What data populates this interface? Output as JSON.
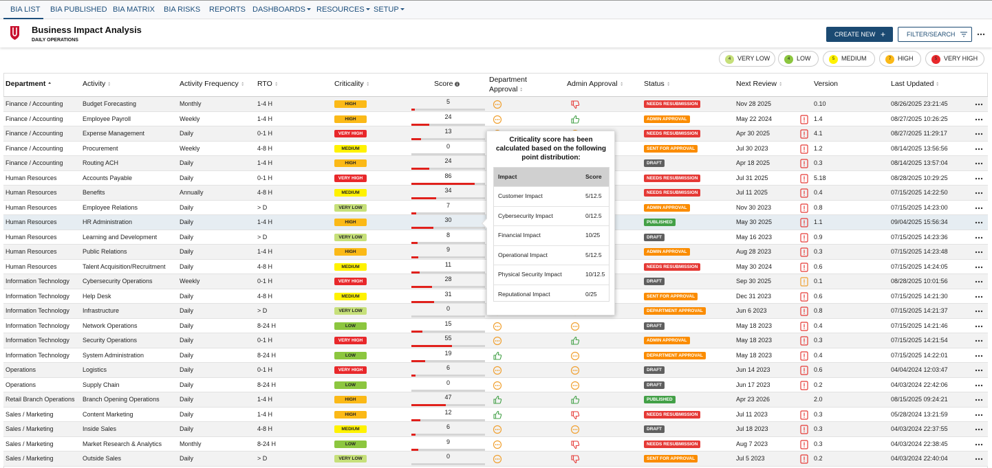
{
  "nav": {
    "tabs": [
      "BIA LIST",
      "BIA PUBLISHED",
      "BIA MATRIX",
      "BIA RISKS",
      "REPORTS",
      "DASHBOARDS",
      "RESOURCES",
      "SETUP"
    ]
  },
  "header": {
    "title": "Business Impact Analysis",
    "subtitle": "DAILY OPERATIONS",
    "create_button": "CREATE NEW",
    "filter_button": "FILTER/SEARCH"
  },
  "legend": [
    {
      "count": 4,
      "label": "VERY LOW",
      "color": "#c6e07a"
    },
    {
      "count": 4,
      "label": "LOW",
      "color": "#8cc63f"
    },
    {
      "count": 5,
      "label": "MEDIUM",
      "color": "#fff200"
    },
    {
      "count": 7,
      "label": "HIGH",
      "color": "#fbb917"
    },
    {
      "count": 5,
      "label": "VERY HIGH",
      "color": "#e8282b"
    }
  ],
  "table": {
    "columns": [
      "Department",
      "Activity",
      "Activity Frequency",
      "RTO",
      "Criticality",
      "Score",
      "Department Approval",
      "Admin Approval",
      "Status",
      "Next Review",
      "Version",
      "Last Updated"
    ],
    "score_lim": [
      0,
      100
    ],
    "rows": [
      {
        "department": "Finance / Accounting",
        "activity": "Budget Forecasting",
        "frequency": "Monthly",
        "rto": "1-4 H",
        "criticality": "HIGH",
        "score": 5,
        "status": {
          "label": "NEEDS RESUBMISSION",
          "color": "#e53935"
        },
        "next_review": "Nov 28 2025",
        "version": "0.10",
        "last_updated": "08/26/2025 23:21:45"
      },
      {
        "department": "Finance / Accounting",
        "activity": "Employee Payroll",
        "frequency": "Weekly",
        "rto": "1-4 H",
        "criticality": "HIGH",
        "score": 24,
        "status": {
          "label": "ADMIN APPROVAL",
          "color": "#fb8c00"
        },
        "next_review": "May 22 2024",
        "version": "1.4",
        "last_updated": "08/27/2025 10:26:25"
      },
      {
        "department": "Finance / Accounting",
        "activity": "Expense Management",
        "frequency": "Daily",
        "rto": "0-1 H",
        "criticality": "VERY HIGH",
        "score": 13,
        "status": {
          "label": "NEEDS RESUBMISSION",
          "color": "#e53935"
        },
        "next_review": "Apr 30 2025",
        "version": "4.1",
        "last_updated": "08/27/2025 11:29:17"
      },
      {
        "department": "Finance / Accounting",
        "activity": "Procurement",
        "frequency": "Weekly",
        "rto": "4-8 H",
        "criticality": "MEDIUM",
        "score": 0,
        "status": {
          "label": "SENT FOR APPROVAL",
          "color": "#fb8c00"
        },
        "next_review": "Jul 30 2023",
        "version": "1.2",
        "last_updated": "08/14/2025 13:56:56"
      },
      {
        "department": "Finance / Accounting",
        "activity": "Routing ACH",
        "frequency": "Daily",
        "rto": "1-4 H",
        "criticality": "HIGH",
        "score": 24,
        "status": {
          "label": "DRAFT",
          "color": "#5f5f5f"
        },
        "next_review": "Apr 18 2025",
        "version": "0.3",
        "last_updated": "08/14/2025 13:57:04"
      },
      {
        "department": "Human Resources",
        "activity": "Accounts Payable",
        "frequency": "Daily",
        "rto": "0-1 H",
        "criticality": "VERY HIGH",
        "score": 86,
        "status": {
          "label": "NEEDS RESUBMISSION",
          "color": "#e53935"
        },
        "next_review": "Jul 31 2025",
        "version": "5.18",
        "last_updated": "08/28/2025 10:29:25"
      },
      {
        "department": "Human Resources",
        "activity": "Benefits",
        "frequency": "Annually",
        "rto": "4-8 H",
        "criticality": "MEDIUM",
        "score": 34,
        "status": {
          "label": "NEEDS RESUBMISSION",
          "color": "#e53935"
        },
        "next_review": "Jul 11 2025",
        "version": "0.4",
        "last_updated": "07/15/2025 14:22:50"
      },
      {
        "department": "Human Resources",
        "activity": "Employee Relations",
        "frequency": "Daily",
        "rto": "> D",
        "criticality": "VERY LOW",
        "score": 7,
        "status": {
          "label": "ADMIN APPROVAL",
          "color": "#fb8c00"
        },
        "next_review": "Nov 30 2023",
        "version": "0.8",
        "last_updated": "07/15/2025 14:23:00"
      },
      {
        "department": "Human Resources",
        "activity": "HR Administration",
        "frequency": "Daily",
        "rto": "1-4 H",
        "criticality": "HIGH",
        "score": 30,
        "status": {
          "label": "PUBLISHED",
          "color": "#43a047"
        },
        "next_review": "May 30 2025",
        "version": "1.1",
        "last_updated": "09/04/2025 15:56:34"
      },
      {
        "department": "Human Resources",
        "activity": "Learning and Development",
        "frequency": "Daily",
        "rto": "> D",
        "criticality": "VERY LOW",
        "score": 8,
        "status": {
          "label": "DRAFT",
          "color": "#5f5f5f"
        },
        "next_review": "May 16 2023",
        "version": "0.9",
        "last_updated": "07/15/2025 14:23:36"
      },
      {
        "department": "Human Resources",
        "activity": "Public Relations",
        "frequency": "Daily",
        "rto": "1-4 H",
        "criticality": "HIGH",
        "score": 9,
        "status": {
          "label": "ADMIN APPROVAL",
          "color": "#fb8c00"
        },
        "next_review": "Aug 28 2023",
        "version": "0.3",
        "last_updated": "07/15/2025 14:23:48"
      },
      {
        "department": "Human Resources",
        "activity": "Talent Acquisition/Recruitment",
        "frequency": "Daily",
        "rto": "4-8 H",
        "criticality": "MEDIUM",
        "score": 11,
        "status": {
          "label": "NEEDS RESUBMISSION",
          "color": "#e53935"
        },
        "next_review": "May 30 2024",
        "version": "0.6",
        "last_updated": "07/15/2025 14:24:05"
      },
      {
        "department": "Information Technology",
        "activity": "Cybersecurity Operations",
        "frequency": "Weekly",
        "rto": "0-1 H",
        "criticality": "VERY HIGH",
        "score": 28,
        "status": {
          "label": "DRAFT",
          "color": "#5f5f5f"
        },
        "next_review": "Sep 30 2025",
        "version": "0.1",
        "last_updated": "08/28/2025 10:01:56"
      },
      {
        "department": "Information Technology",
        "activity": "Help Desk",
        "frequency": "Daily",
        "rto": "4-8 H",
        "criticality": "MEDIUM",
        "score": 31,
        "status": {
          "label": "SENT FOR APPROVAL",
          "color": "#fb8c00"
        },
        "next_review": "Dec 31 2023",
        "version": "0.6",
        "last_updated": "07/15/2025 14:21:30"
      },
      {
        "department": "Information Technology",
        "activity": "Infrastructure",
        "frequency": "Daily",
        "rto": "> D",
        "criticality": "VERY LOW",
        "score": 0,
        "status": {
          "label": "DEPARTMENT APPROVAL",
          "color": "#fb8c00"
        },
        "next_review": "Jun 6 2023",
        "version": "0.8",
        "last_updated": "07/15/2025 14:21:37"
      },
      {
        "department": "Information Technology",
        "activity": "Network Operations",
        "frequency": "Daily",
        "rto": "8-24 H",
        "criticality": "LOW",
        "score": 15,
        "status": {
          "label": "DRAFT",
          "color": "#5f5f5f"
        },
        "next_review": "May 18 2023",
        "version": "0.4",
        "last_updated": "07/15/2025 14:21:46"
      },
      {
        "department": "Information Technology",
        "activity": "Security Operations",
        "frequency": "Daily",
        "rto": "0-1 H",
        "criticality": "VERY HIGH",
        "score": 55,
        "status": {
          "label": "ADMIN APPROVAL",
          "color": "#fb8c00"
        },
        "next_review": "May 18 2023",
        "version": "0.3",
        "last_updated": "07/15/2025 14:21:54"
      },
      {
        "department": "Information Technology",
        "activity": "System Administration",
        "frequency": "Daily",
        "rto": "8-24 H",
        "criticality": "LOW",
        "score": 19,
        "status": {
          "label": "DEPARTMENT APPROVAL",
          "color": "#fb8c00"
        },
        "next_review": "May 18 2023",
        "version": "0.4",
        "last_updated": "07/15/2025 14:22:01"
      },
      {
        "department": "Operations",
        "activity": "Logistics",
        "frequency": "Daily",
        "rto": "0-1 H",
        "criticality": "VERY HIGH",
        "score": 6,
        "status": {
          "label": "DRAFT",
          "color": "#5f5f5f"
        },
        "next_review": "Jun 14 2023",
        "version": "0.6",
        "last_updated": "04/04/2024 12:03:47"
      },
      {
        "department": "Operations",
        "activity": "Supply Chain",
        "frequency": "Daily",
        "rto": "8-24 H",
        "criticality": "LOW",
        "score": 0,
        "status": {
          "label": "DRAFT",
          "color": "#5f5f5f"
        },
        "next_review": "Jun 17 2023",
        "version": "0.2",
        "last_updated": "04/03/2024 22:42:06"
      },
      {
        "department": "Retail Branch Operations",
        "activity": "Branch Opening Operations",
        "frequency": "Daily",
        "rto": "1-4 H",
        "criticality": "HIGH",
        "score": 47,
        "status": {
          "label": "PUBLISHED",
          "color": "#43a047"
        },
        "next_review": "Apr 23 2026",
        "version": "2.0",
        "last_updated": "08/15/2025 09:24:21"
      },
      {
        "department": "Sales / Marketing",
        "activity": "Content Marketing",
        "frequency": "Daily",
        "rto": "1-4 H",
        "criticality": "HIGH",
        "score": 12,
        "status": {
          "label": "NEEDS RESUBMISSION",
          "color": "#e53935"
        },
        "next_review": "Jul 11 2023",
        "version": "0.3",
        "last_updated": "05/28/2024 13:21:59"
      },
      {
        "department": "Sales / Marketing",
        "activity": "Inside Sales",
        "frequency": "Daily",
        "rto": "4-8 H",
        "criticality": "MEDIUM",
        "score": 6,
        "status": {
          "label": "DRAFT",
          "color": "#5f5f5f"
        },
        "next_review": "Jul 18 2023",
        "version": "0.3",
        "last_updated": "04/03/2024 22:37:55"
      },
      {
        "department": "Sales / Marketing",
        "activity": "Market Research & Analytics",
        "frequency": "Monthly",
        "rto": "8-24 H",
        "criticality": "LOW",
        "score": 9,
        "status": {
          "label": "NEEDS RESUBMISSION",
          "color": "#e53935"
        },
        "next_review": "Aug 7 2023",
        "version": "0.3",
        "last_updated": "04/03/2024 22:38:45"
      },
      {
        "department": "Sales / Marketing",
        "activity": "Outside Sales",
        "frequency": "Daily",
        "rto": "> D",
        "criticality": "VERY LOW",
        "score": 0,
        "status": {
          "label": "SENT FOR APPROVAL",
          "color": "#fb8c00"
        },
        "next_review": "Jul 5 2023",
        "version": "0.2",
        "last_updated": "04/03/2024 22:40:04"
      }
    ]
  },
  "tooltip": {
    "title": "Criticality score has been calculated based on the following point distribution:",
    "columns": [
      "Impact",
      "Score"
    ],
    "rows": [
      [
        "Customer Impact",
        "5/12.5"
      ],
      [
        "Cybersecurity Impact",
        "0/12.5"
      ],
      [
        "Financial Impact",
        "10/25"
      ],
      [
        "Operational Impact",
        "5/12.5"
      ],
      [
        "Physical Security Impact",
        "10/12.5"
      ],
      [
        "Reputational Impact",
        "0/25"
      ]
    ]
  }
}
